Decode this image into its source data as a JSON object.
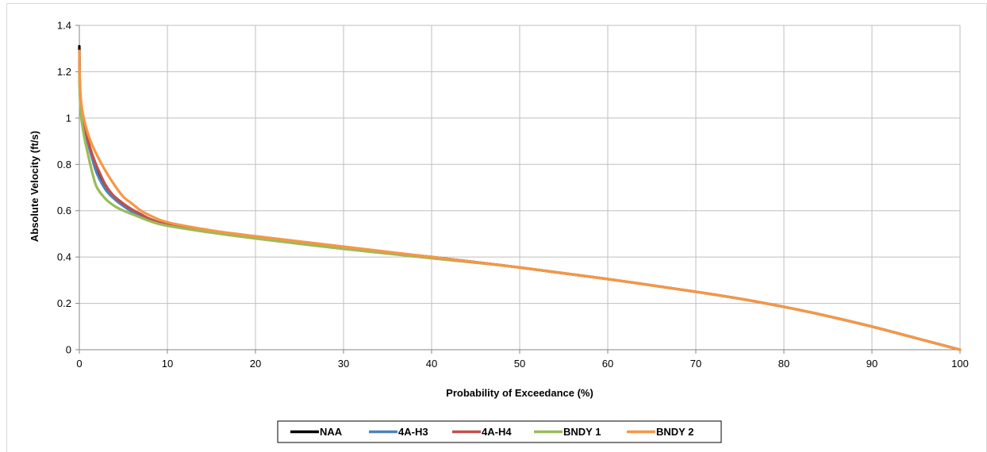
{
  "chart_data": {
    "type": "line",
    "title": "",
    "xlabel": "Probability of Exceedance (%)",
    "ylabel": "Absolute Velocity (ft/s)",
    "xlim": [
      0,
      100
    ],
    "ylim": [
      0,
      1.4
    ],
    "xticks": [
      0,
      10,
      20,
      30,
      40,
      50,
      60,
      70,
      80,
      90,
      100
    ],
    "yticks": [
      0,
      0.2,
      0.4,
      0.6,
      0.8,
      1,
      1.2,
      1.4
    ],
    "xtick_labels": [
      "0",
      "10",
      "20",
      "30",
      "40",
      "50",
      "60",
      "70",
      "80",
      "90",
      "100"
    ],
    "ytick_labels": [
      "0",
      "0.2",
      "0.4",
      "0.6",
      "0.8",
      "1",
      "1.2",
      "1.4"
    ],
    "grid": true,
    "legend_position": "bottom",
    "series": [
      {
        "name": "NAA",
        "color": "#000000",
        "x": [
          0,
          0.05,
          0.2,
          0.5,
          1,
          1.5,
          2,
          3,
          4,
          5,
          6,
          7,
          8,
          10,
          15,
          20,
          30,
          40,
          50,
          60,
          70,
          75,
          80,
          85,
          90,
          95,
          100
        ],
        "y": [
          1.31,
          1.15,
          1.05,
          0.98,
          0.9,
          0.83,
          0.77,
          0.7,
          0.66,
          0.63,
          0.6,
          0.58,
          0.56,
          0.54,
          0.51,
          0.485,
          0.44,
          0.4,
          0.355,
          0.305,
          0.25,
          0.22,
          0.185,
          0.145,
          0.1,
          0.05,
          0.0
        ]
      },
      {
        "name": "4A-H3",
        "color": "#4f81bd",
        "x": [
          0,
          0.05,
          0.2,
          0.5,
          1,
          1.5,
          2,
          3,
          4,
          5,
          6,
          7,
          8,
          10,
          15,
          20,
          30,
          40,
          50,
          60,
          70,
          75,
          80,
          85,
          90,
          95,
          100
        ],
        "y": [
          1.26,
          1.14,
          1.04,
          0.97,
          0.89,
          0.82,
          0.76,
          0.69,
          0.65,
          0.62,
          0.595,
          0.575,
          0.56,
          0.54,
          0.51,
          0.485,
          0.44,
          0.4,
          0.355,
          0.305,
          0.25,
          0.22,
          0.185,
          0.145,
          0.1,
          0.05,
          0.0
        ]
      },
      {
        "name": "4A-H4",
        "color": "#c0504d",
        "x": [
          0,
          0.05,
          0.2,
          0.5,
          1,
          1.5,
          2,
          3,
          4,
          5,
          6,
          7,
          8,
          10,
          15,
          20,
          30,
          40,
          50,
          60,
          70,
          75,
          80,
          85,
          90,
          95,
          100
        ],
        "y": [
          1.24,
          1.13,
          1.04,
          0.97,
          0.9,
          0.84,
          0.79,
          0.71,
          0.66,
          0.63,
          0.605,
          0.585,
          0.565,
          0.54,
          0.51,
          0.485,
          0.44,
          0.4,
          0.355,
          0.305,
          0.25,
          0.22,
          0.185,
          0.145,
          0.1,
          0.05,
          0.0
        ]
      },
      {
        "name": "BNDY 1",
        "color": "#9bbb59",
        "x": [
          0,
          0.05,
          0.2,
          0.5,
          1,
          1.5,
          2,
          3,
          4,
          5,
          6,
          7,
          8,
          10,
          15,
          20,
          30,
          40,
          50,
          60,
          70,
          75,
          80,
          85,
          90,
          95,
          100
        ],
        "y": [
          1.2,
          1.1,
          1.01,
          0.93,
          0.84,
          0.76,
          0.7,
          0.65,
          0.62,
          0.6,
          0.585,
          0.57,
          0.555,
          0.535,
          0.505,
          0.48,
          0.435,
          0.395,
          0.355,
          0.305,
          0.25,
          0.22,
          0.185,
          0.145,
          0.1,
          0.05,
          0.0
        ]
      },
      {
        "name": "BNDY 2",
        "color": "#f79646",
        "x": [
          0,
          0.05,
          0.2,
          0.5,
          1,
          1.5,
          2,
          3,
          4,
          5,
          6,
          7,
          8,
          10,
          15,
          20,
          30,
          40,
          50,
          60,
          70,
          75,
          80,
          85,
          90,
          95,
          100
        ],
        "y": [
          1.29,
          1.17,
          1.07,
          1.0,
          0.93,
          0.88,
          0.84,
          0.77,
          0.71,
          0.66,
          0.63,
          0.6,
          0.58,
          0.55,
          0.515,
          0.49,
          0.445,
          0.4,
          0.355,
          0.305,
          0.25,
          0.22,
          0.185,
          0.145,
          0.1,
          0.05,
          0.0
        ]
      }
    ]
  }
}
